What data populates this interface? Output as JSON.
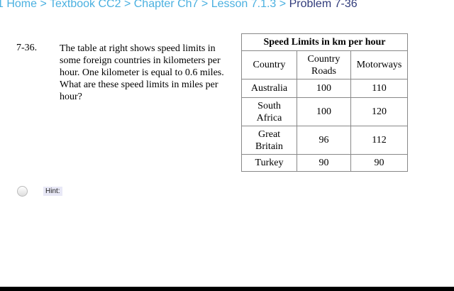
{
  "breadcrumb": [
    "1 Home",
    "Textbook CC2",
    "Chapter Ch7",
    "Lesson 7.1.3",
    "Problem 7-36"
  ],
  "separator": ">",
  "problem": {
    "number": "7-36.",
    "text": "The table at right shows speed limits in some foreign countries in kilometers per hour.  One kilometer is equal to 0.6 miles.  What are these speed limits in miles per hour?"
  },
  "table": {
    "title": "Speed Limits in km per hour",
    "headers": [
      "Country",
      "Country Roads",
      "Motorways"
    ],
    "rows": [
      [
        "Australia",
        "100",
        "110"
      ],
      [
        "South Africa",
        "100",
        "120"
      ],
      [
        "Great Britain",
        "96",
        "112"
      ],
      [
        "Turkey",
        "90",
        "90"
      ]
    ]
  },
  "hint": {
    "label": "Hint:"
  }
}
